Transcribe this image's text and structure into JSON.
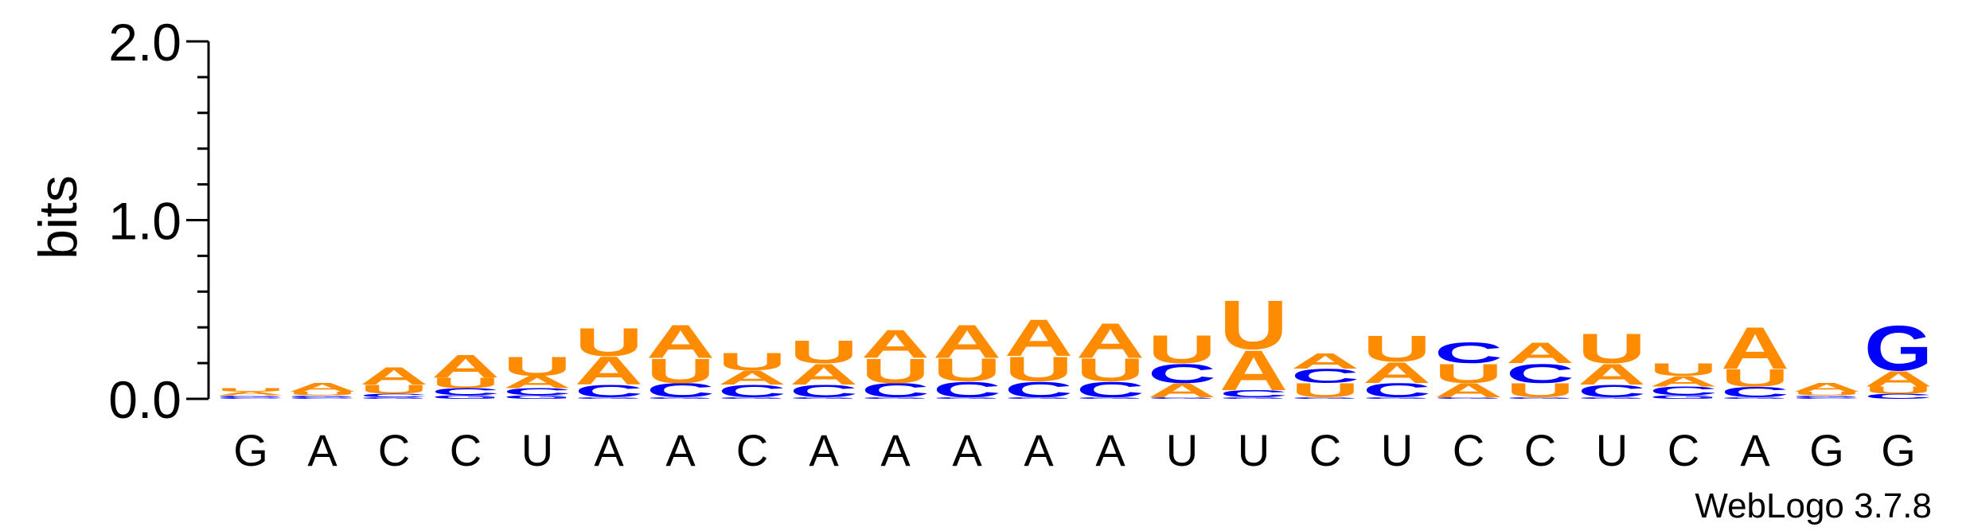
{
  "chart_data": {
    "type": "sequence-logo",
    "ylabel": "bits",
    "ylim": [
      0,
      2.0
    ],
    "yticks": [
      {
        "value": 0.0,
        "label": "0.0"
      },
      {
        "value": 1.0,
        "label": "1.0"
      },
      {
        "value": 2.0,
        "label": "2.0"
      }
    ],
    "minor_tick_step": 0.2,
    "consensus": [
      "G",
      "A",
      "C",
      "C",
      "U",
      "A",
      "A",
      "C",
      "A",
      "A",
      "A",
      "A",
      "A",
      "U",
      "U",
      "C",
      "U",
      "C",
      "C",
      "U",
      "C",
      "A",
      "G",
      "G"
    ],
    "colors": {
      "A": "#ff8c00",
      "U": "#ff8c00",
      "C": "#0000ff",
      "G": "#0000ff"
    },
    "positions": [
      [
        [
          "A",
          0.02
        ],
        [
          "U",
          0.02
        ],
        [
          "C",
          0.01
        ],
        [
          "G",
          0.01
        ]
      ],
      [
        [
          "A",
          0.05
        ],
        [
          "U",
          0.02
        ],
        [
          "C",
          0.01
        ],
        [
          "G",
          0.01
        ]
      ],
      [
        [
          "A",
          0.1
        ],
        [
          "U",
          0.05
        ],
        [
          "C",
          0.02
        ],
        [
          "G",
          0.01
        ]
      ],
      [
        [
          "A",
          0.13
        ],
        [
          "U",
          0.06
        ],
        [
          "C",
          0.04
        ],
        [
          "G",
          0.02
        ]
      ],
      [
        [
          "U",
          0.11
        ],
        [
          "A",
          0.07
        ],
        [
          "C",
          0.04
        ],
        [
          "G",
          0.02
        ]
      ],
      [
        [
          "A",
          0.16
        ],
        [
          "U",
          0.16
        ],
        [
          "C",
          0.07
        ],
        [
          "G",
          0.01
        ]
      ],
      [
        [
          "A",
          0.19
        ],
        [
          "U",
          0.14
        ],
        [
          "C",
          0.08
        ],
        [
          "G",
          0.01
        ]
      ],
      [
        [
          "U",
          0.1
        ],
        [
          "A",
          0.08
        ],
        [
          "C",
          0.07
        ],
        [
          "G",
          0.01
        ]
      ],
      [
        [
          "U",
          0.13
        ],
        [
          "A",
          0.12
        ],
        [
          "C",
          0.07
        ],
        [
          "G",
          0.01
        ]
      ],
      [
        [
          "A",
          0.16
        ],
        [
          "U",
          0.14
        ],
        [
          "C",
          0.08
        ],
        [
          "G",
          0.01
        ]
      ],
      [
        [
          "A",
          0.19
        ],
        [
          "U",
          0.13
        ],
        [
          "C",
          0.09
        ],
        [
          "G",
          0.01
        ]
      ],
      [
        [
          "A",
          0.21
        ],
        [
          "U",
          0.14
        ],
        [
          "C",
          0.09
        ],
        [
          "G",
          0.01
        ]
      ],
      [
        [
          "A",
          0.2
        ],
        [
          "U",
          0.13
        ],
        [
          "C",
          0.09
        ],
        [
          "G",
          0.01
        ]
      ],
      [
        [
          "U",
          0.16
        ],
        [
          "C",
          0.11
        ],
        [
          "A",
          0.08
        ],
        [
          "G",
          0.01
        ]
      ],
      [
        [
          "U",
          0.28
        ],
        [
          "A",
          0.23
        ],
        [
          "C",
          0.04
        ],
        [
          "G",
          0.01
        ]
      ],
      [
        [
          "U",
          0.08
        ],
        [
          "A",
          0.09
        ],
        [
          "C",
          0.08
        ],
        [
          "G",
          0.01
        ]
      ],
      [
        [
          "U",
          0.15
        ],
        [
          "A",
          0.12
        ],
        [
          "C",
          0.08
        ],
        [
          "G",
          0.01
        ]
      ],
      [
        [
          "U",
          0.11
        ],
        [
          "C",
          0.12
        ],
        [
          "A",
          0.08
        ],
        [
          "G",
          0.01
        ]
      ],
      [
        [
          "A",
          0.12
        ],
        [
          "C",
          0.11
        ],
        [
          "U",
          0.08
        ],
        [
          "G",
          0.01
        ]
      ],
      [
        [
          "U",
          0.17
        ],
        [
          "A",
          0.12
        ],
        [
          "C",
          0.07
        ],
        [
          "G",
          0.01
        ]
      ],
      [
        [
          "U",
          0.07
        ],
        [
          "A",
          0.06
        ],
        [
          "C",
          0.05
        ],
        [
          "G",
          0.02
        ]
      ],
      [
        [
          "A",
          0.24
        ],
        [
          "U",
          0.1
        ],
        [
          "C",
          0.06
        ],
        [
          "G",
          0.01
        ]
      ],
      [
        [
          "A",
          0.05
        ],
        [
          "U",
          0.02
        ],
        [
          "C",
          0.01
        ],
        [
          "G",
          0.01
        ]
      ],
      [
        [
          "G",
          0.26
        ],
        [
          "A",
          0.09
        ],
        [
          "U",
          0.04
        ],
        [
          "C",
          0.03
        ]
      ]
    ],
    "watermark": "WebLogo 3.7.8"
  }
}
